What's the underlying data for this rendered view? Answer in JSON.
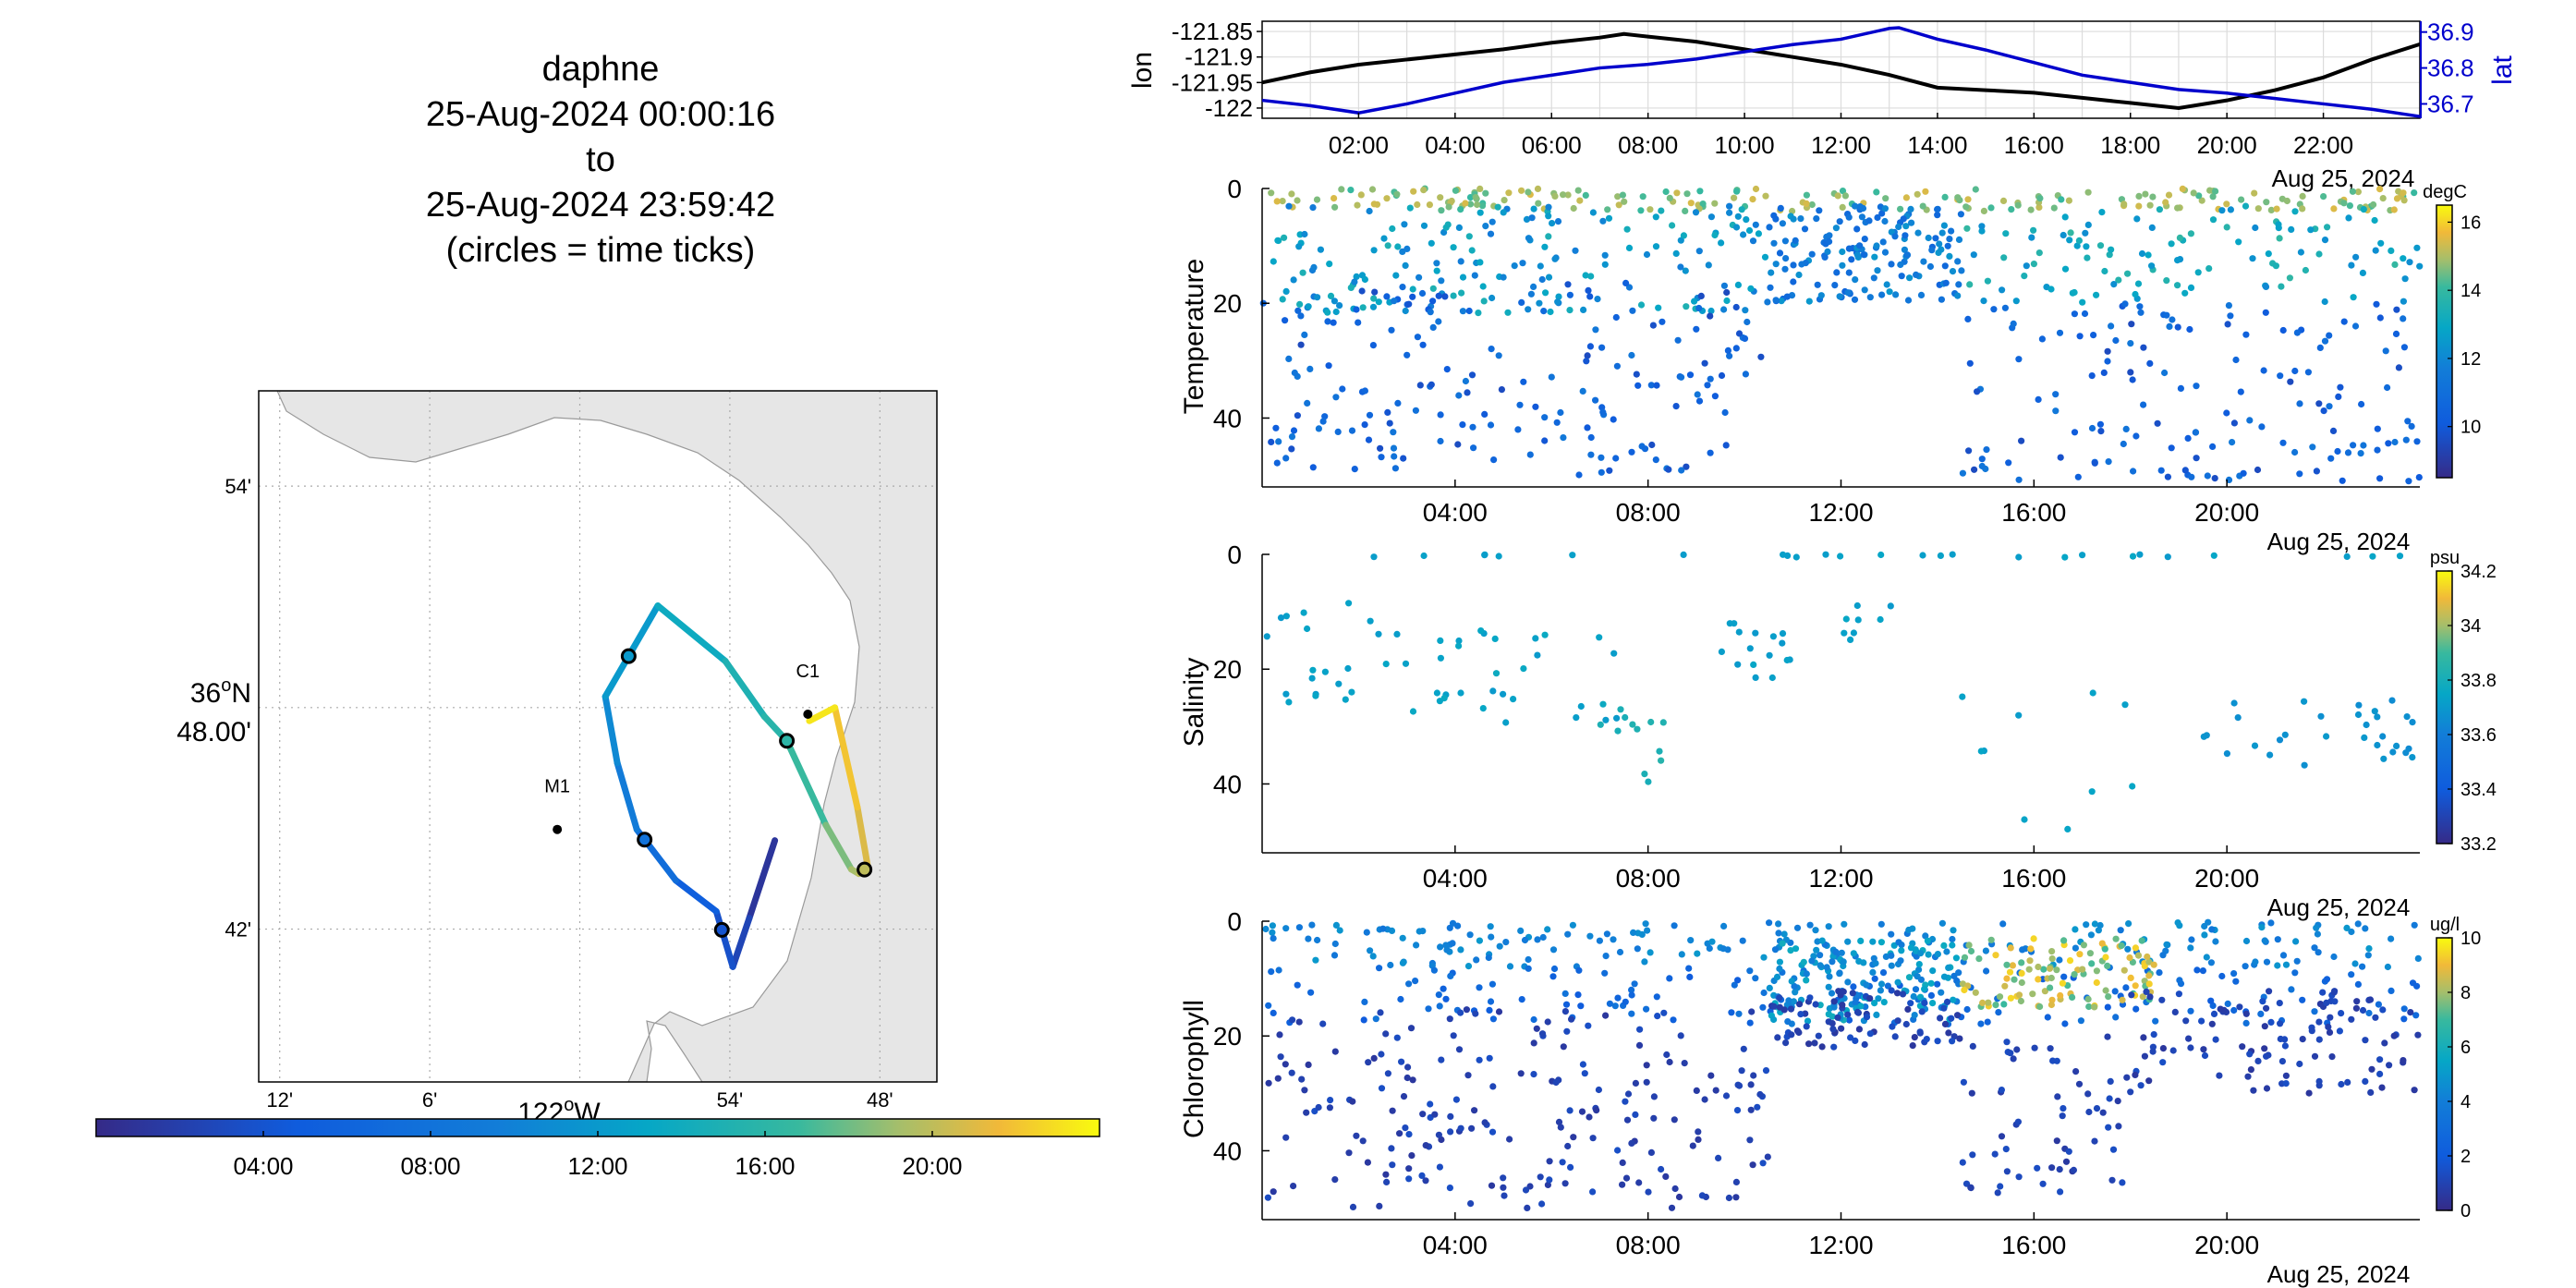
{
  "header": {
    "title": "daphne",
    "start": "25-Aug-2024 00:00:16",
    "to": "to",
    "end": "25-Aug-2024 23:59:42",
    "note": "(circles = time ticks)"
  },
  "map": {
    "lat_ticks": [
      "54'",
      "48.00'",
      "42'"
    ],
    "lat_degree_label": "36",
    "lat_degree_suffix": "N",
    "lon_ticks": [
      "12'",
      "6'",
      "54'",
      "48'"
    ],
    "lon_degree_label": "122",
    "lon_degree_suffix": "W",
    "stations": [
      {
        "name": "M1",
        "lon": -122.015,
        "lat": 36.745
      },
      {
        "name": "C1",
        "lon": -121.848,
        "lat": 36.797
      }
    ],
    "track": [
      {
        "t": 0.0,
        "lon": -121.87,
        "lat": 36.74
      },
      {
        "t": 2.2,
        "lon": -121.887,
        "lat": 36.705
      },
      {
        "t": 3.0,
        "lon": -121.898,
        "lat": 36.683
      },
      {
        "t": 4.5,
        "lon": -121.909,
        "lat": 36.708
      },
      {
        "t": 6.0,
        "lon": -121.936,
        "lat": 36.722
      },
      {
        "t": 8.5,
        "lon": -121.962,
        "lat": 36.745
      },
      {
        "t": 10.0,
        "lon": -121.975,
        "lat": 36.775
      },
      {
        "t": 11.2,
        "lon": -121.983,
        "lat": 36.805
      },
      {
        "t": 13.0,
        "lon": -121.948,
        "lat": 36.846
      },
      {
        "t": 14.5,
        "lon": -121.903,
        "lat": 36.821
      },
      {
        "t": 15.5,
        "lon": -121.877,
        "lat": 36.796
      },
      {
        "t": 16.0,
        "lon": -121.862,
        "lat": 36.785
      },
      {
        "t": 17.6,
        "lon": -121.836,
        "lat": 36.747
      },
      {
        "t": 19.0,
        "lon": -121.819,
        "lat": 36.727
      },
      {
        "t": 19.5,
        "lon": -121.814,
        "lat": 36.725
      },
      {
        "t": 20.3,
        "lon": -121.808,
        "lat": 36.728
      },
      {
        "t": 21.5,
        "lon": -121.815,
        "lat": 36.755
      },
      {
        "t": 22.5,
        "lon": -121.83,
        "lat": 36.8
      },
      {
        "t": 23.99,
        "lon": -121.847,
        "lat": 36.794
      }
    ],
    "time_circles": [
      4.0,
      8.0,
      12.0,
      16.0,
      20.0
    ]
  },
  "colorbar_time": {
    "ticks": [
      "04:00",
      "08:00",
      "12:00",
      "16:00",
      "20:00"
    ]
  },
  "top_panel": {
    "ylabel_left": "lon",
    "ylabel_right": "lat",
    "lon_ticks": [
      "-121.85",
      "-121.9",
      "-121.95",
      "-122"
    ],
    "lat_ticks": [
      "36.9",
      "36.8",
      "36.7"
    ],
    "x_ticks": [
      "02:00",
      "04:00",
      "06:00",
      "08:00",
      "10:00",
      "12:00",
      "14:00",
      "16:00",
      "18:00",
      "20:00",
      "22:00"
    ],
    "date_label": "Aug 25, 2024",
    "left_color": "#000000",
    "right_color": "#0000cc"
  },
  "panels": [
    {
      "ylabel": "Temperature",
      "unit": "degC",
      "cticks": [
        "16",
        "14",
        "12",
        "10"
      ],
      "y_ticks": [
        "0",
        "20",
        "40"
      ],
      "x_ticks": [
        "04:00",
        "08:00",
        "12:00",
        "16:00",
        "20:00"
      ],
      "date_label": "Aug 25, 2024"
    },
    {
      "ylabel": "Salinity",
      "unit": "psu",
      "cticks": [
        "34.2",
        "34",
        "33.8",
        "33.6",
        "33.4",
        "33.2"
      ],
      "y_ticks": [
        "0",
        "20",
        "40"
      ],
      "x_ticks": [
        "04:00",
        "08:00",
        "12:00",
        "16:00",
        "20:00"
      ],
      "date_label": "Aug 25, 2024"
    },
    {
      "ylabel": "Chlorophyll",
      "unit": "ug/l",
      "cticks": [
        "10",
        "8",
        "6",
        "4",
        "2",
        "0"
      ],
      "y_ticks": [
        "0",
        "20",
        "40"
      ],
      "x_ticks": [
        "04:00",
        "08:00",
        "12:00",
        "16:00",
        "20:00"
      ],
      "date_label": "Aug 25, 2024"
    }
  ],
  "chart_data": [
    {
      "type": "line",
      "title": "",
      "xlabel": "",
      "ylabel": "lon",
      "ylabel_right": "lat",
      "xlim": [
        0,
        24
      ],
      "ylim": [
        -122.02,
        -121.83
      ],
      "ylim_right": [
        36.66,
        36.93
      ],
      "grid": true,
      "series": [
        {
          "name": "lon",
          "x": [
            0,
            1,
            2,
            3,
            4,
            5,
            6,
            7,
            7.5,
            8,
            9,
            10,
            11,
            12,
            13,
            14,
            15,
            16,
            17,
            18,
            19,
            20,
            21,
            22,
            23,
            24
          ],
          "y": [
            -121.95,
            -121.93,
            -121.915,
            -121.905,
            -121.895,
            -121.885,
            -121.872,
            -121.862,
            -121.855,
            -121.86,
            -121.87,
            -121.885,
            -121.9,
            -121.915,
            -121.935,
            -121.96,
            -121.965,
            -121.97,
            -121.98,
            -121.99,
            -122.0,
            -121.985,
            -121.965,
            -121.94,
            -121.905,
            -121.875
          ]
        },
        {
          "name": "lat",
          "x": [
            0,
            1,
            2,
            3,
            4,
            5,
            6,
            7,
            8,
            9,
            10,
            11,
            12,
            13,
            13.2,
            14,
            15,
            16,
            17,
            18,
            19,
            20,
            21,
            22,
            23,
            24
          ],
          "y": [
            36.71,
            36.695,
            36.675,
            36.7,
            36.73,
            36.76,
            36.78,
            36.8,
            36.81,
            36.825,
            36.845,
            36.865,
            36.88,
            36.91,
            36.912,
            36.88,
            36.85,
            36.815,
            36.78,
            36.76,
            36.74,
            36.73,
            36.715,
            36.7,
            36.685,
            36.665
          ]
        }
      ]
    },
    {
      "type": "scatter",
      "title": "",
      "ylabel": "Temperature",
      "colorbar_label": "degC",
      "xlim": [
        0,
        24
      ],
      "ylim": [
        52,
        0
      ],
      "clim": [
        8.5,
        16.5
      ],
      "layers": [
        {
          "t0": 0.0,
          "t1": 24.0,
          "z0": 0,
          "z1": 4,
          "c0": 14.0,
          "c1": 15.5,
          "n": 200
        },
        {
          "t0": 0.0,
          "t1": 10.5,
          "z0": 3,
          "z1": 22,
          "c0": 11.5,
          "c1": 13.5,
          "n": 180
        },
        {
          "t0": 0.0,
          "t1": 10.5,
          "z0": 16,
          "z1": 50,
          "c0": 9.5,
          "c1": 11.5,
          "n": 180
        },
        {
          "t0": 10.5,
          "t1": 14.5,
          "z0": 3,
          "z1": 20,
          "c0": 10.5,
          "c1": 12.5,
          "n": 160
        },
        {
          "t0": 14.5,
          "t1": 24.0,
          "z0": 3,
          "z1": 20,
          "c0": 12.0,
          "c1": 14.0,
          "n": 110
        },
        {
          "t0": 14.5,
          "t1": 24.0,
          "z0": 20,
          "z1": 51,
          "c0": 9.5,
          "c1": 11.5,
          "n": 150
        }
      ]
    },
    {
      "type": "scatter",
      "title": "",
      "ylabel": "Salinity",
      "colorbar_label": "psu",
      "xlim": [
        0,
        24
      ],
      "ylim": [
        52,
        0
      ],
      "clim": [
        33.2,
        34.2
      ],
      "layers": [
        {
          "t0": 0.0,
          "t1": 24.0,
          "z0": 0,
          "z1": 0.5,
          "c0": 33.7,
          "c1": 33.75,
          "n": 26
        },
        {
          "t0": 0.0,
          "t1": 3.0,
          "z0": 8,
          "z1": 27,
          "c0": 33.7,
          "c1": 33.75,
          "n": 22
        },
        {
          "t0": 3.0,
          "t1": 7.5,
          "z0": 12,
          "z1": 30,
          "c0": 33.7,
          "c1": 33.78,
          "n": 30
        },
        {
          "t0": 7.0,
          "t1": 8.5,
          "z0": 25,
          "z1": 40,
          "c0": 33.8,
          "c1": 33.85,
          "n": 12
        },
        {
          "t0": 9.5,
          "t1": 11.0,
          "z0": 12,
          "z1": 22,
          "c0": 33.7,
          "c1": 33.75,
          "n": 16
        },
        {
          "t0": 12.0,
          "t1": 13.5,
          "z0": 8,
          "z1": 16,
          "c0": 33.7,
          "c1": 33.75,
          "n": 8
        },
        {
          "t0": 14.5,
          "t1": 18.5,
          "z0": 18,
          "z1": 48,
          "c0": 33.7,
          "c1": 33.75,
          "n": 10
        },
        {
          "t0": 19.5,
          "t1": 24.0,
          "z0": 25,
          "z1": 37,
          "c0": 33.65,
          "c1": 33.7,
          "n": 30
        }
      ]
    },
    {
      "type": "scatter",
      "title": "",
      "ylabel": "Chlorophyll",
      "colorbar_label": "ug/l",
      "xlim": [
        0,
        24
      ],
      "ylim": [
        52,
        0
      ],
      "clim": [
        0,
        10
      ],
      "layers": [
        {
          "t0": 0.0,
          "t1": 24.0,
          "z0": 0,
          "z1": 8,
          "c0": 3.5,
          "c1": 5.0,
          "n": 200
        },
        {
          "t0": 0.0,
          "t1": 24.0,
          "z0": 8,
          "z1": 18,
          "c0": 2.0,
          "c1": 3.5,
          "n": 150
        },
        {
          "t0": 0.0,
          "t1": 10.5,
          "z0": 15,
          "z1": 50,
          "c0": 0.5,
          "c1": 1.5,
          "n": 200
        },
        {
          "t0": 10.5,
          "t1": 14.5,
          "z0": 3,
          "z1": 18,
          "c0": 3.5,
          "c1": 6.0,
          "n": 160
        },
        {
          "t0": 10.5,
          "t1": 14.5,
          "z0": 12,
          "z1": 22,
          "c0": 0.5,
          "c1": 1.5,
          "n": 80
        },
        {
          "t0": 14.5,
          "t1": 18.5,
          "z0": 3,
          "z1": 15,
          "c0": 7.0,
          "c1": 9.5,
          "n": 110
        },
        {
          "t0": 14.5,
          "t1": 18.0,
          "z0": 20,
          "z1": 48,
          "c0": 0.5,
          "c1": 1.5,
          "n": 60
        },
        {
          "t0": 18.0,
          "t1": 24.0,
          "z0": 12,
          "z1": 30,
          "c0": 0.5,
          "c1": 1.5,
          "n": 110
        }
      ]
    }
  ]
}
